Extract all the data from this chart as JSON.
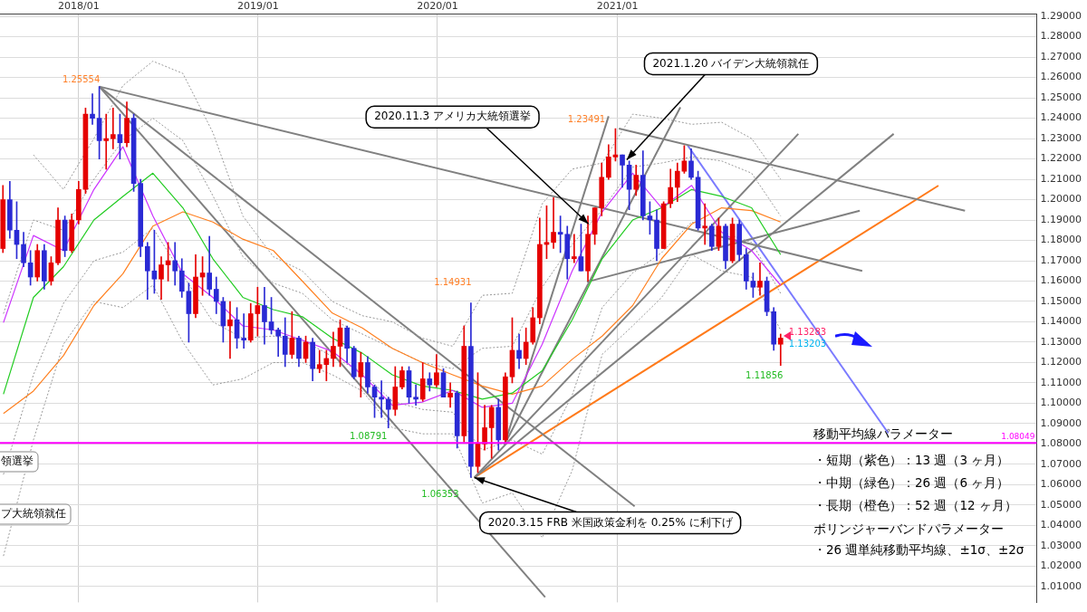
{
  "chart_data": {
    "type": "candlestick",
    "x": [
      "2017-07-31",
      "2017-08-14",
      "2017-08-28",
      "2017-09-11",
      "2017-09-25",
      "2017-10-09",
      "2017-10-23",
      "2017-11-06",
      "2017-11-20",
      "2017-12-04",
      "2017-12-18",
      "2018-01-01",
      "2018-01-15",
      "2018-01-29",
      "2018-02-12",
      "2018-02-26",
      "2018-03-12",
      "2018-03-26",
      "2018-04-09",
      "2018-04-23",
      "2018-05-07",
      "2018-05-21",
      "2018-06-04",
      "2018-06-18",
      "2018-07-02",
      "2018-07-16",
      "2018-07-30",
      "2018-08-13",
      "2018-08-27",
      "2018-09-10",
      "2018-09-24",
      "2018-10-08",
      "2018-10-22",
      "2018-11-05",
      "2018-11-19",
      "2018-12-03",
      "2018-12-17",
      "2018-12-31",
      "2019-01-14",
      "2019-01-28",
      "2019-02-11",
      "2019-02-25",
      "2019-03-11",
      "2019-03-25",
      "2019-04-08",
      "2019-04-22",
      "2019-05-06",
      "2019-05-20",
      "2019-06-03",
      "2019-06-17",
      "2019-07-01",
      "2019-07-15",
      "2019-07-29",
      "2019-08-12",
      "2019-08-26",
      "2019-09-09",
      "2019-09-23",
      "2019-10-07",
      "2019-10-21",
      "2019-11-04",
      "2019-11-18",
      "2019-12-02",
      "2019-12-16",
      "2019-12-30",
      "2020-01-13",
      "2020-01-27",
      "2020-02-10",
      "2020-02-24",
      "2020-03-09",
      "2020-03-23",
      "2020-04-06",
      "2020-04-20",
      "2020-05-04",
      "2020-05-18",
      "2020-06-01",
      "2020-06-15",
      "2020-06-29",
      "2020-07-13",
      "2020-07-27",
      "2020-08-10",
      "2020-08-24",
      "2020-09-07",
      "2020-09-21",
      "2020-10-05",
      "2020-10-19",
      "2020-11-02",
      "2020-11-16",
      "2020-11-30",
      "2020-12-14",
      "2020-12-28",
      "2021-01-11",
      "2021-01-25",
      "2021-02-08",
      "2021-02-22",
      "2021-03-08",
      "2021-03-22",
      "2021-04-05",
      "2021-04-19",
      "2021-05-03",
      "2021-05-17",
      "2021-05-31",
      "2021-06-14",
      "2021-06-28",
      "2021-07-12",
      "2021-07-26",
      "2021-08-09",
      "2021-08-23",
      "2021-09-06",
      "2021-09-20",
      "2021-10-04",
      "2021-10-18",
      "2021-11-01",
      "2021-11-15",
      "2021-11-29"
    ],
    "ohlc": [
      [
        1.176,
        1.207,
        1.174,
        1.2
      ],
      [
        1.2,
        1.209,
        1.181,
        1.185
      ],
      [
        1.185,
        1.199,
        1.171,
        1.178
      ],
      [
        1.178,
        1.184,
        1.167,
        1.169
      ],
      [
        1.169,
        1.175,
        1.158,
        1.162
      ],
      [
        1.162,
        1.178,
        1.16,
        1.175
      ],
      [
        1.175,
        1.178,
        1.156,
        1.16
      ],
      [
        1.16,
        1.172,
        1.158,
        1.169
      ],
      [
        1.169,
        1.196,
        1.168,
        1.19
      ],
      [
        1.19,
        1.192,
        1.172,
        1.175
      ],
      [
        1.175,
        1.193,
        1.174,
        1.19
      ],
      [
        1.19,
        1.209,
        1.188,
        1.205
      ],
      [
        1.205,
        1.245,
        1.203,
        1.242
      ],
      [
        1.242,
        1.252,
        1.237,
        1.24
      ],
      [
        1.24,
        1.25554,
        1.22,
        1.229
      ],
      [
        1.229,
        1.242,
        1.215,
        1.23
      ],
      [
        1.23,
        1.245,
        1.225,
        1.232
      ],
      [
        1.232,
        1.242,
        1.22,
        1.228
      ],
      [
        1.228,
        1.248,
        1.226,
        1.24
      ],
      [
        1.24,
        1.242,
        1.204,
        1.208
      ],
      [
        1.208,
        1.21,
        1.172,
        1.177
      ],
      [
        1.177,
        1.179,
        1.151,
        1.165
      ],
      [
        1.165,
        1.185,
        1.154,
        1.161
      ],
      [
        1.161,
        1.172,
        1.151,
        1.168
      ],
      [
        1.168,
        1.179,
        1.16,
        1.17
      ],
      [
        1.17,
        1.179,
        1.158,
        1.165
      ],
      [
        1.165,
        1.171,
        1.152,
        1.155
      ],
      [
        1.155,
        1.159,
        1.13,
        1.144
      ],
      [
        1.144,
        1.173,
        1.142,
        1.162
      ],
      [
        1.162,
        1.172,
        1.153,
        1.164
      ],
      [
        1.164,
        1.182,
        1.153,
        1.156
      ],
      [
        1.156,
        1.162,
        1.144,
        1.15
      ],
      [
        1.15,
        1.152,
        1.13,
        1.138
      ],
      [
        1.138,
        1.15,
        1.122,
        1.141
      ],
      [
        1.141,
        1.147,
        1.127,
        1.132
      ],
      [
        1.132,
        1.144,
        1.127,
        1.131
      ],
      [
        1.131,
        1.149,
        1.13,
        1.144
      ],
      [
        1.144,
        1.157,
        1.133,
        1.148
      ],
      [
        1.148,
        1.157,
        1.129,
        1.14
      ],
      [
        1.14,
        1.152,
        1.134,
        1.136
      ],
      [
        1.136,
        1.137,
        1.123,
        1.133
      ],
      [
        1.133,
        1.142,
        1.118,
        1.124
      ],
      [
        1.124,
        1.145,
        1.122,
        1.132
      ],
      [
        1.132,
        1.133,
        1.118,
        1.122
      ],
      [
        1.122,
        1.133,
        1.12,
        1.13
      ],
      [
        1.13,
        1.132,
        1.111,
        1.117
      ],
      [
        1.117,
        1.126,
        1.115,
        1.119
      ],
      [
        1.119,
        1.126,
        1.111,
        1.122
      ],
      [
        1.122,
        1.135,
        1.118,
        1.128
      ],
      [
        1.128,
        1.141,
        1.118,
        1.137
      ],
      [
        1.137,
        1.138,
        1.12,
        1.127
      ],
      [
        1.127,
        1.128,
        1.112,
        1.113
      ],
      [
        1.113,
        1.125,
        1.103,
        1.12
      ],
      [
        1.12,
        1.123,
        1.105,
        1.108
      ],
      [
        1.108,
        1.109,
        1.093,
        1.103
      ],
      [
        1.103,
        1.111,
        1.093,
        1.102
      ],
      [
        1.102,
        1.103,
        1.08791,
        1.097
      ],
      [
        1.097,
        1.118,
        1.094,
        1.108
      ],
      [
        1.108,
        1.118,
        1.107,
        1.116
      ],
      [
        1.116,
        1.118,
        1.1,
        1.103
      ],
      [
        1.103,
        1.109,
        1.099,
        1.102
      ],
      [
        1.102,
        1.12,
        1.101,
        1.112
      ],
      [
        1.112,
        1.115,
        1.106,
        1.109
      ],
      [
        1.109,
        1.124,
        1.108,
        1.115
      ],
      [
        1.115,
        1.117,
        1.103,
        1.103
      ],
      [
        1.103,
        1.11,
        1.098,
        1.105
      ],
      [
        1.105,
        1.106,
        1.078,
        1.084
      ],
      [
        1.084,
        1.138,
        1.081,
        1.128
      ],
      [
        1.128,
        1.14931,
        1.06353,
        1.069
      ],
      [
        1.069,
        1.115,
        1.066,
        1.08
      ],
      [
        1.08,
        1.099,
        1.077,
        1.088
      ],
      [
        1.088,
        1.099,
        1.073,
        1.098
      ],
      [
        1.098,
        1.102,
        1.077,
        1.082
      ],
      [
        1.082,
        1.115,
        1.081,
        1.113
      ],
      [
        1.113,
        1.142,
        1.11,
        1.126
      ],
      [
        1.126,
        1.134,
        1.117,
        1.122
      ],
      [
        1.122,
        1.137,
        1.119,
        1.13
      ],
      [
        1.13,
        1.147,
        1.129,
        1.142
      ],
      [
        1.142,
        1.191,
        1.139,
        1.178
      ],
      [
        1.178,
        1.197,
        1.171,
        1.179
      ],
      [
        1.179,
        1.201,
        1.176,
        1.184
      ],
      [
        1.184,
        1.192,
        1.174,
        1.183
      ],
      [
        1.183,
        1.187,
        1.161,
        1.171
      ],
      [
        1.171,
        1.183,
        1.169,
        1.172
      ],
      [
        1.172,
        1.188,
        1.165,
        1.165
      ],
      [
        1.165,
        1.192,
        1.16,
        1.183
      ],
      [
        1.183,
        1.196,
        1.178,
        1.196
      ],
      [
        1.196,
        1.218,
        1.192,
        1.211
      ],
      [
        1.211,
        1.227,
        1.21,
        1.221
      ],
      [
        1.221,
        1.23491,
        1.219,
        1.222
      ],
      [
        1.222,
        1.222,
        1.206,
        1.217
      ],
      [
        1.217,
        1.219,
        1.195,
        1.205
      ],
      [
        1.205,
        1.217,
        1.202,
        1.212
      ],
      [
        1.212,
        1.224,
        1.19,
        1.192
      ],
      [
        1.192,
        1.199,
        1.183,
        1.19
      ],
      [
        1.19,
        1.195,
        1.17,
        1.176
      ],
      [
        1.176,
        1.199,
        1.176,
        1.198
      ],
      [
        1.198,
        1.215,
        1.196,
        1.206
      ],
      [
        1.206,
        1.218,
        1.199,
        1.214
      ],
      [
        1.214,
        1.2266,
        1.213,
        1.219
      ],
      [
        1.219,
        1.225,
        1.21,
        1.211
      ],
      [
        1.211,
        1.214,
        1.185,
        1.186
      ],
      [
        1.186,
        1.198,
        1.178,
        1.187
      ],
      [
        1.187,
        1.188,
        1.175,
        1.177
      ],
      [
        1.177,
        1.191,
        1.175,
        1.187
      ],
      [
        1.187,
        1.188,
        1.166,
        1.17
      ],
      [
        1.17,
        1.191,
        1.169,
        1.188
      ],
      [
        1.188,
        1.19,
        1.17,
        1.173
      ],
      [
        1.173,
        1.176,
        1.156,
        1.16
      ],
      [
        1.16,
        1.164,
        1.152,
        1.157
      ],
      [
        1.157,
        1.169,
        1.153,
        1.16
      ],
      [
        1.16,
        1.162,
        1.143,
        1.145
      ],
      [
        1.145,
        1.147,
        1.126,
        1.129
      ],
      [
        1.129,
        1.134,
        1.11856,
        1.132
      ]
    ],
    "colors": [
      "#e50000",
      "#2a2ad4",
      "#2a2ad4",
      "#2a2ad4",
      "#2a2ad4",
      "#e50000",
      "#2a2ad4",
      "#e50000",
      "#e50000",
      "#2a2ad4",
      "#e50000",
      "#e50000",
      "#e50000",
      "#2a2ad4",
      "#2a2ad4",
      "#e50000",
      "#e50000",
      "#2a2ad4",
      "#e50000",
      "#2a2ad4",
      "#2a2ad4",
      "#2a2ad4",
      "#2a2ad4",
      "#e50000",
      "#e50000",
      "#2a2ad4",
      "#2a2ad4",
      "#2a2ad4",
      "#e50000",
      "#e50000",
      "#2a2ad4",
      "#2a2ad4",
      "#2a2ad4",
      "#e50000",
      "#2a2ad4",
      "#2a2ad4",
      "#e50000",
      "#e50000",
      "#2a2ad4",
      "#2a2ad4",
      "#2a2ad4",
      "#2a2ad4",
      "#e50000",
      "#2a2ad4",
      "#e50000",
      "#2a2ad4",
      "#e50000",
      "#e50000",
      "#e50000",
      "#e50000",
      "#2a2ad4",
      "#2a2ad4",
      "#e50000",
      "#2a2ad4",
      "#2a2ad4",
      "#2a2ad4",
      "#2a2ad4",
      "#e50000",
      "#e50000",
      "#2a2ad4",
      "#2a2ad4",
      "#e50000",
      "#2a2ad4",
      "#e50000",
      "#2a2ad4",
      "#e50000",
      "#2a2ad4",
      "#e50000",
      "#2a2ad4",
      "#e50000",
      "#e50000",
      "#e50000",
      "#2a2ad4",
      "#e50000",
      "#e50000",
      "#2a2ad4",
      "#e50000",
      "#e50000",
      "#e50000",
      "#e50000",
      "#e50000",
      "#2a2ad4",
      "#2a2ad4",
      "#e50000",
      "#2a2ad4",
      "#e50000",
      "#e50000",
      "#e50000",
      "#e50000",
      "#e50000",
      "#2a2ad4",
      "#2a2ad4",
      "#e50000",
      "#2a2ad4",
      "#2a2ad4",
      "#2a2ad4",
      "#e50000",
      "#e50000",
      "#e50000",
      "#e50000",
      "#2a2ad4",
      "#2a2ad4",
      "#e50000",
      "#2a2ad4",
      "#e50000",
      "#2a2ad4",
      "#e50000",
      "#2a2ad4",
      "#2a2ad4",
      "#2a2ad4",
      "#e50000",
      "#2a2ad4",
      "#2a2ad4",
      "#e50000"
    ],
    "series": [
      {
        "type": "line",
        "color": "#cc33ff",
        "x": [
          "2017-08-01",
          "2017-10-01",
          "2017-12-01",
          "2018-02-01",
          "2018-04-01",
          "2018-06-01",
          "2018-08-01",
          "2018-10-01",
          "2018-12-01",
          "2019-02-01",
          "2019-04-01",
          "2019-06-01",
          "2019-08-01",
          "2019-10-01",
          "2019-12-01",
          "2020-02-01",
          "2020-04-01",
          "2020-06-01",
          "2020-08-01",
          "2020-10-01",
          "2020-12-01",
          "2021-02-01",
          "2021-04-01",
          "2021-06-01",
          "2021-08-01",
          "2021-10-01",
          "2021-11-29"
        ],
        "values": [
          1.1396,
          1.1824,
          1.175,
          1.205,
          1.226,
          1.192,
          1.1636,
          1.152,
          1.138,
          1.136,
          1.131,
          1.1255,
          1.114,
          1.099,
          1.1006,
          1.1063,
          1.098,
          1.1,
          1.129,
          1.165,
          1.194,
          1.213,
          1.196,
          1.207,
          1.184,
          1.175,
          1.158
        ]
      },
      {
        "type": "line",
        "color": "#22cc22",
        "x": [
          "2017-08-01",
          "2017-10-01",
          "2017-12-01",
          "2018-02-01",
          "2018-04-01",
          "2018-06-01",
          "2018-08-01",
          "2018-10-01",
          "2018-12-01",
          "2019-02-01",
          "2019-04-01",
          "2019-06-01",
          "2019-08-01",
          "2019-10-01",
          "2019-12-01",
          "2020-02-01",
          "2020-04-01",
          "2020-06-01",
          "2020-08-01",
          "2020-10-01",
          "2020-12-01",
          "2021-02-01",
          "2021-04-01",
          "2021-06-01",
          "2021-08-01",
          "2021-10-01",
          "2021-11-29"
        ],
        "values": [
          1.1045,
          1.152,
          1.167,
          1.19,
          1.2016,
          1.213,
          1.196,
          1.171,
          1.152,
          1.146,
          1.1425,
          1.132,
          1.1246,
          1.114,
          1.1085,
          1.1063,
          1.102,
          1.105,
          1.116,
          1.141,
          1.171,
          1.19,
          1.196,
          1.205,
          1.2016,
          1.196,
          1.173
        ]
      },
      {
        "type": "line",
        "color": "#ff8020",
        "x": [
          "2017-08-01",
          "2017-10-01",
          "2017-12-01",
          "2018-02-01",
          "2018-04-01",
          "2018-06-01",
          "2018-08-01",
          "2018-10-01",
          "2018-12-01",
          "2019-02-01",
          "2019-04-01",
          "2019-06-01",
          "2019-08-01",
          "2019-10-01",
          "2019-12-01",
          "2020-02-01",
          "2020-04-01",
          "2020-06-01",
          "2020-08-01",
          "2020-10-01",
          "2020-12-01",
          "2021-02-01",
          "2021-04-01",
          "2021-06-01",
          "2021-08-01",
          "2021-10-01",
          "2021-11-29"
        ],
        "values": [
          1.095,
          1.106,
          1.1234,
          1.148,
          1.1636,
          1.187,
          1.194,
          1.189,
          1.1806,
          1.175,
          1.16,
          1.1443,
          1.137,
          1.127,
          1.12,
          1.114,
          1.1085,
          1.1045,
          1.1085,
          1.1216,
          1.133,
          1.148,
          1.171,
          1.188,
          1.196,
          1.1946,
          1.189
        ]
      },
      {
        "type": "line",
        "color": "#999999",
        "line_style": "dotted",
        "x": [
          "2017-10-01",
          "2017-12-01",
          "2018-02-01",
          "2018-04-01",
          "2018-06-01",
          "2018-08-01",
          "2018-10-01",
          "2018-12-01",
          "2019-02-01",
          "2019-04-01",
          "2019-06-01",
          "2019-08-01",
          "2019-10-01",
          "2019-12-01",
          "2020-02-01",
          "2020-04-01",
          "2020-06-01",
          "2020-08-01",
          "2020-10-01",
          "2020-12-01",
          "2021-02-01",
          "2021-04-01",
          "2021-06-01",
          "2021-08-01",
          "2021-10-01",
          "2021-11-29"
        ],
        "values": [
          1.222,
          1.205,
          1.23,
          1.256,
          1.268,
          1.262,
          1.233,
          1.192,
          1.172,
          1.165,
          1.15,
          1.143,
          1.14,
          1.132,
          1.128,
          1.153,
          1.154,
          1.198,
          1.215,
          1.218,
          1.242,
          1.24,
          1.237,
          1.238,
          1.23,
          1.21
        ]
      },
      {
        "type": "line",
        "color": "#999999",
        "line_style": "dotted",
        "x": [
          "2017-08-01",
          "2017-10-01",
          "2017-12-01",
          "2018-02-01",
          "2018-04-01",
          "2018-06-01",
          "2018-08-01",
          "2018-10-01",
          "2018-12-01",
          "2019-02-01",
          "2019-04-01",
          "2019-06-01",
          "2019-08-01",
          "2019-10-01",
          "2019-12-01",
          "2020-02-01",
          "2020-04-01",
          "2020-06-01",
          "2020-08-01",
          "2020-10-01",
          "2020-12-01",
          "2021-02-01",
          "2021-04-01",
          "2021-06-01",
          "2021-08-01",
          "2021-10-01",
          "2021-11-29"
        ],
        "values": [
          1.144,
          1.19,
          1.185,
          1.21,
          1.229,
          1.24,
          1.229,
          1.202,
          1.172,
          1.159,
          1.154,
          1.141,
          1.134,
          1.127,
          1.12,
          1.117,
          1.127,
          1.128,
          1.157,
          1.178,
          1.195,
          1.216,
          1.218,
          1.221,
          1.219,
          1.213,
          1.192
        ]
      },
      {
        "type": "line",
        "color": "#999999",
        "line_style": "dotted",
        "x": [
          "2017-08-01",
          "2017-10-01",
          "2017-12-01",
          "2018-02-01",
          "2018-04-01",
          "2018-06-01",
          "2018-08-01",
          "2018-10-01",
          "2018-12-01",
          "2019-02-01",
          "2019-04-01",
          "2019-06-01",
          "2019-08-01",
          "2019-10-01",
          "2019-12-01",
          "2020-02-01",
          "2020-04-01",
          "2020-06-01",
          "2020-08-01",
          "2020-10-01",
          "2020-12-01",
          "2021-02-01",
          "2021-04-01",
          "2021-06-01",
          "2021-08-01",
          "2021-10-01",
          "2021-11-29"
        ],
        "values": [
          1.065,
          1.114,
          1.149,
          1.17,
          1.1742,
          1.186,
          1.163,
          1.14,
          1.132,
          1.133,
          1.131,
          1.123,
          1.1152,
          1.101,
          1.097,
          1.0956,
          1.077,
          1.082,
          1.075,
          1.104,
          1.147,
          1.164,
          1.174,
          1.189,
          1.1842,
          1.179,
          1.154
        ]
      },
      {
        "type": "line",
        "color": "#999999",
        "line_style": "dotted",
        "x": [
          "2017-08-01",
          "2017-10-01",
          "2017-12-01",
          "2018-02-01",
          "2018-04-01",
          "2018-06-01",
          "2018-08-01",
          "2018-10-01",
          "2018-12-01",
          "2019-02-01",
          "2019-04-01",
          "2019-06-01",
          "2019-08-01",
          "2019-10-01",
          "2019-12-01",
          "2020-02-01",
          "2020-04-01",
          "2020-06-01",
          "2020-08-01",
          "2020-10-01",
          "2020-12-01",
          "2021-02-01",
          "2021-04-01",
          "2021-06-01",
          "2021-08-01",
          "2021-10-01",
          "2021-11-29"
        ],
        "values": [
          1.025,
          1.082,
          1.129,
          1.15,
          1.147,
          1.158,
          1.13,
          1.109,
          1.112,
          1.12,
          1.12,
          1.114,
          1.106,
          1.088,
          1.085,
          1.085,
          1.051,
          1.056,
          1.034,
          1.067,
          1.124,
          1.138,
          1.152,
          1.173,
          1.165,
          1.162,
          1.136
        ]
      },
      {
        "type": "line",
        "color": "#808080",
        "x": [
          "2018-02-12",
          "2020-08-07"
        ],
        "values": [
          1.25554,
          1.0048
        ]
      },
      {
        "type": "line",
        "color": "#808080",
        "x": [
          "2018-02-12",
          "2021-02-05"
        ],
        "values": [
          1.25554,
          1.0494
        ]
      },
      {
        "type": "line",
        "color": "#808080",
        "x": [
          "2018-02-12",
          "2022-05-14"
        ],
        "values": [
          1.25554,
          1.165
        ]
      },
      {
        "type": "line",
        "color": "#808080",
        "x": [
          "2021-01-04",
          "2022-12-09"
        ],
        "values": [
          1.23491,
          1.1946
        ]
      },
      {
        "type": "line",
        "color": "#808080",
        "x": [
          "2020-05-16",
          "2020-12-14"
        ],
        "values": [
          1.0796,
          1.241
        ]
      },
      {
        "type": "line",
        "color": "#808080",
        "x": [
          "2020-05-16",
          "2021-05-09"
        ],
        "values": [
          1.0796,
          1.2454
        ]
      },
      {
        "type": "line",
        "color": "#808080",
        "x": [
          "2020-03-16",
          "2022-01-04"
        ],
        "values": [
          1.06353,
          1.2323
        ]
      },
      {
        "type": "line",
        "color": "#808080",
        "x": [
          "2020-03-16",
          "2022-07-17"
        ],
        "values": [
          1.06353,
          1.2323
        ]
      },
      {
        "type": "line",
        "color": "#808080",
        "x": [
          "2020-10-31",
          "2022-05-09"
        ],
        "values": [
          1.1596,
          1.1946
        ]
      },
      {
        "type": "line",
        "color": "#ff7a1a",
        "x": [
          "2020-03-16",
          "2022-10-16"
        ],
        "values": [
          1.06353,
          1.2069
        ]
      },
      {
        "type": "line",
        "color": "#7b7bff",
        "x": [
          "2021-05-24",
          "2022-07-06"
        ],
        "values": [
          1.2266,
          1.0853
        ]
      }
    ],
    "xlim": [
      "2017-07-25",
      "2023-05-04"
    ],
    "xticks": [
      {
        "value": "2018-01-01",
        "label": "2018/01"
      },
      {
        "value": "2019-01-01",
        "label": "2019/01"
      },
      {
        "value": "2020-01-01",
        "label": "2020/01"
      },
      {
        "value": "2021-01-01",
        "label": "2021/01"
      }
    ],
    "ylim": [
      1.0022,
      1.2913
    ],
    "yticks": [
      {
        "value": 1.01,
        "label": "1.01000"
      },
      {
        "value": 1.02,
        "label": "1.02000"
      },
      {
        "value": 1.03,
        "label": "1.03000"
      },
      {
        "value": 1.04,
        "label": "1.04000"
      },
      {
        "value": 1.05,
        "label": "1.05000"
      },
      {
        "value": 1.06,
        "label": "1.06000"
      },
      {
        "value": 1.07,
        "label": "1.07000"
      },
      {
        "value": 1.08,
        "label": "1.08000"
      },
      {
        "value": 1.09,
        "label": "1.09000"
      },
      {
        "value": 1.1,
        "label": "1.10000"
      },
      {
        "value": 1.11,
        "label": "1.11000"
      },
      {
        "value": 1.12,
        "label": "1.12000"
      },
      {
        "value": 1.13,
        "label": "1.13000"
      },
      {
        "value": 1.14,
        "label": "1.14000"
      },
      {
        "value": 1.15,
        "label": "1.15000"
      },
      {
        "value": 1.16,
        "label": "1.16000"
      },
      {
        "value": 1.17,
        "label": "1.17000"
      },
      {
        "value": 1.18,
        "label": "1.18000"
      },
      {
        "value": 1.19,
        "label": "1.19000"
      },
      {
        "value": 1.2,
        "label": "1.20000"
      },
      {
        "value": 1.21,
        "label": "1.21000"
      },
      {
        "value": 1.22,
        "label": "1.22000"
      },
      {
        "value": 1.23,
        "label": "1.23000"
      },
      {
        "value": 1.24,
        "label": "1.24000"
      },
      {
        "value": 1.25,
        "label": "1.25000"
      },
      {
        "value": 1.26,
        "label": "1.26000"
      },
      {
        "value": 1.27,
        "label": "1.27000"
      },
      {
        "value": 1.28,
        "label": "1.28000"
      },
      {
        "value": 1.29,
        "label": "1.29000"
      }
    ],
    "grid": true,
    "ref_lines": [
      {
        "axis": "y",
        "value": 1.08049,
        "label": "1.08049",
        "color": "#ff00ff"
      }
    ],
    "annotations": [
      {
        "text": "1.25554",
        "x": "2018-02-12",
        "y": 1.25554
      },
      {
        "text": "1.23491",
        "x": "2020-12-28",
        "y": 1.23491
      },
      {
        "text": "1.14931",
        "x": "2020-03-09",
        "y": 1.14931
      },
      {
        "text": "1.08791",
        "x": "2019-09-23",
        "y": 1.08791
      },
      {
        "text": "1.06353",
        "x": "2020-03-09",
        "y": 1.06353
      },
      {
        "text": "1.11856",
        "x": "2021-11-29",
        "y": 1.11856
      },
      {
        "text": "1.13283",
        "x": "2021-11-29",
        "y": 1.13283
      },
      {
        "text": "1.13203",
        "x": "2021-11-29",
        "y": 1.13203
      },
      {
        "text": "2021.1.20 バイデン大統領就任",
        "x": "2021-01-20",
        "y": 1.2196
      },
      {
        "text": "2020.11.3 アメリカ大統領選挙",
        "x": "2020-11-03",
        "y": 1.1881
      },
      {
        "text": "2020.3.15 FRB 米国政策金利を 0.25% に利下げ",
        "x": "2020-03-16",
        "y": 1.06353
      },
      "領選挙",
      "プ大統領就任",
      "移動平均線パラメーター",
      "・短期（紫色）：13 週（3 ヶ月）",
      "・中期（緑色）：26 週（6 ヶ月）",
      "・長期（橙色）：52 週（12 ヶ月）",
      "ボリンジャーバンドパラメーター",
      "・26 週単純移動平均線、±1σ、±2σ"
    ]
  }
}
